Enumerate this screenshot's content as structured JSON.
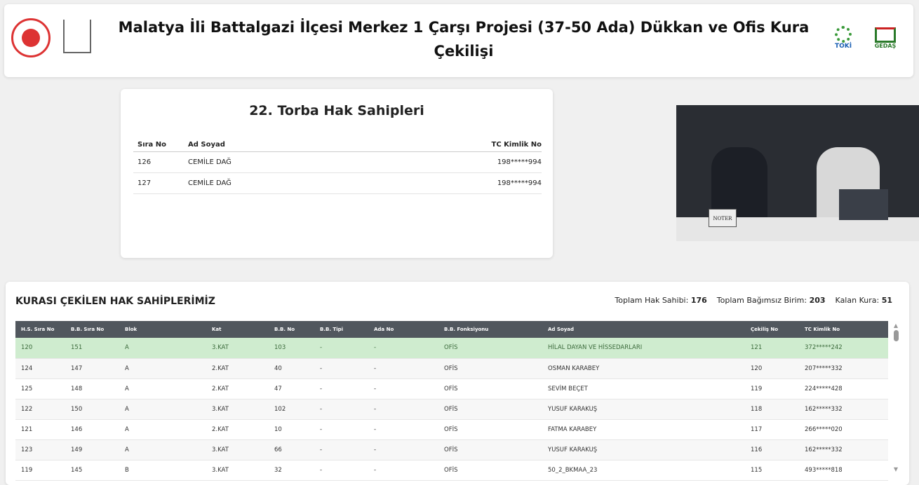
{
  "header": {
    "title": "Malatya İli Battalgazi İlçesi Merkez 1 Çarşı Projesi (37-50 Ada) Dükkan ve Ofis Kura Çekilişi",
    "logo_toki": "TOKİ",
    "logo_gedas": "GEDAŞ"
  },
  "torba": {
    "title": "22. Torba Hak Sahipleri",
    "columns": [
      "Sıra No",
      "Ad Soyad",
      "TC Kimlik No"
    ],
    "rows": [
      [
        "126",
        "CEMİLE DAĞ",
        "198*****994"
      ],
      [
        "127",
        "CEMİLE DAĞ",
        "198*****994"
      ]
    ]
  },
  "video": {
    "sign": "NOTER"
  },
  "results": {
    "title": "KURASI ÇEKİLEN HAK SAHİPLERİMİZ",
    "stats": [
      {
        "label": "Toplam Hak Sahibi:",
        "value": "176"
      },
      {
        "label": "Toplam Bağımsız Birim:",
        "value": "203"
      },
      {
        "label": "Kalan Kura:",
        "value": "51"
      }
    ],
    "columns": [
      "H.S. Sıra No",
      "B.B. Sıra No",
      "Blok",
      "Kat",
      "B.B. No",
      "B.B. Tipi",
      "Ada No",
      "B.B. Fonksiyonu",
      "Ad Soyad",
      "Çekiliş No",
      "TC Kimlik No"
    ],
    "highlight_color": "#cfeccf",
    "rows": [
      [
        "120",
        "151",
        "A",
        "3.KAT",
        "103",
        "-",
        "-",
        "OFİS",
        "HİLAL DAYAN VE HİSSEDARLARI",
        "121",
        "372*****242"
      ],
      [
        "124",
        "147",
        "A",
        "2.KAT",
        "40",
        "-",
        "-",
        "OFİS",
        "OSMAN KARABEY",
        "120",
        "207*****332"
      ],
      [
        "125",
        "148",
        "A",
        "2.KAT",
        "47",
        "-",
        "-",
        "OFİS",
        "SEVİM BEÇET",
        "119",
        "224*****428"
      ],
      [
        "122",
        "150",
        "A",
        "3.KAT",
        "102",
        "-",
        "-",
        "OFİS",
        "YUSUF KARAKUŞ",
        "118",
        "162*****332"
      ],
      [
        "121",
        "146",
        "A",
        "2.KAT",
        "10",
        "-",
        "-",
        "OFİS",
        "FATMA KARABEY",
        "117",
        "266*****020"
      ],
      [
        "123",
        "149",
        "A",
        "3.KAT",
        "66",
        "-",
        "-",
        "OFİS",
        "YUSUF KARAKUŞ",
        "116",
        "162*****332"
      ],
      [
        "119",
        "145",
        "B",
        "3.KAT",
        "32",
        "-",
        "-",
        "OFİS",
        "50_2_BKMAA_23",
        "115",
        "493*****818"
      ]
    ]
  }
}
